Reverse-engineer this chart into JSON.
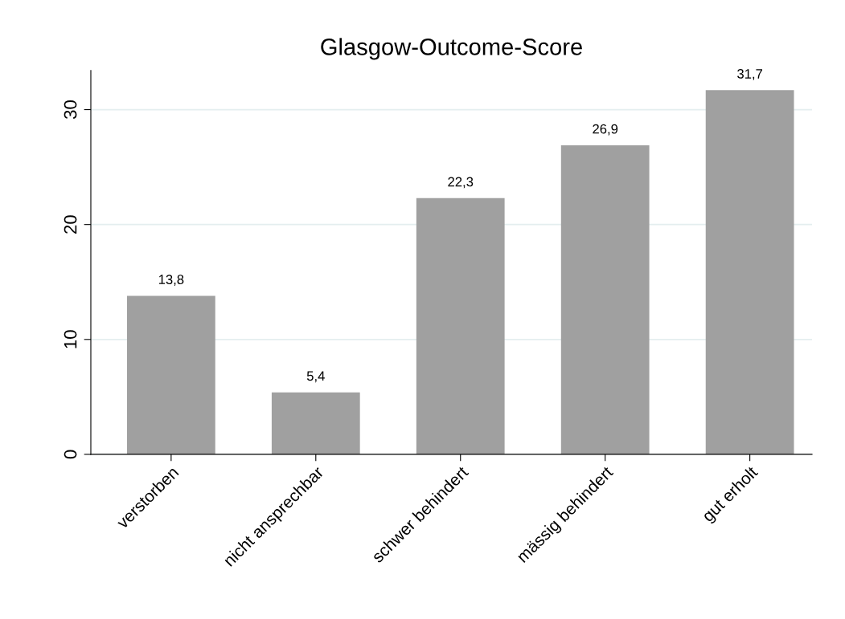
{
  "chart_data": {
    "type": "bar",
    "title": "Glasgow-Outcome-Score",
    "categories": [
      "verstorben",
      "nicht ansprechbar",
      "schwer behindert",
      "mässig behindert",
      "gut erholt"
    ],
    "values": [
      13.8,
      5.4,
      22.3,
      26.9,
      31.7
    ],
    "value_labels": [
      "13,8",
      "5,4",
      "22,3",
      "26,9",
      "31,7"
    ],
    "color": "#a0a0a0",
    "ylim": [
      0,
      33.4
    ],
    "yticks": [
      0,
      10,
      20,
      30
    ],
    "grid": "y"
  }
}
